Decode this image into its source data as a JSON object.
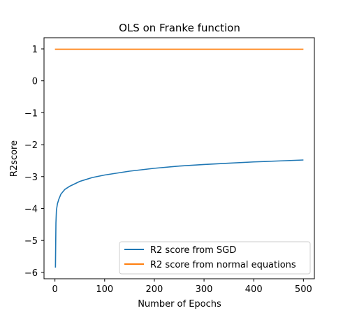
{
  "chart_data": {
    "type": "line",
    "title": "OLS on Franke function",
    "xlabel": "Number of Epochs",
    "ylabel": "R2score",
    "xlim": [
      -22,
      522
    ],
    "ylim": [
      -6.2,
      1.35
    ],
    "xticks": [
      0,
      100,
      200,
      300,
      400,
      500
    ],
    "yticks": [
      1,
      0,
      -1,
      -2,
      -3,
      -4,
      -5,
      -6
    ],
    "ytick_labels": [
      "1",
      "0",
      "−1",
      "−2",
      "−3",
      "−4",
      "−5",
      "−6"
    ],
    "grid": false,
    "legend_position": "lower-right",
    "series": [
      {
        "name": "R2 score from SGD",
        "color": "#1f77b4",
        "x": [
          1,
          2,
          3,
          5,
          8,
          12,
          20,
          30,
          50,
          75,
          100,
          150,
          200,
          250,
          300,
          350,
          400,
          450,
          500
        ],
        "y": [
          -5.85,
          -4.45,
          -4.05,
          -3.85,
          -3.7,
          -3.55,
          -3.4,
          -3.3,
          -3.15,
          -3.03,
          -2.95,
          -2.83,
          -2.74,
          -2.67,
          -2.62,
          -2.58,
          -2.54,
          -2.51,
          -2.48
        ]
      },
      {
        "name": "R2 score from normal equations",
        "color": "#ff7f0e",
        "x": [
          0,
          500
        ],
        "y": [
          0.99,
          0.99
        ]
      }
    ]
  }
}
